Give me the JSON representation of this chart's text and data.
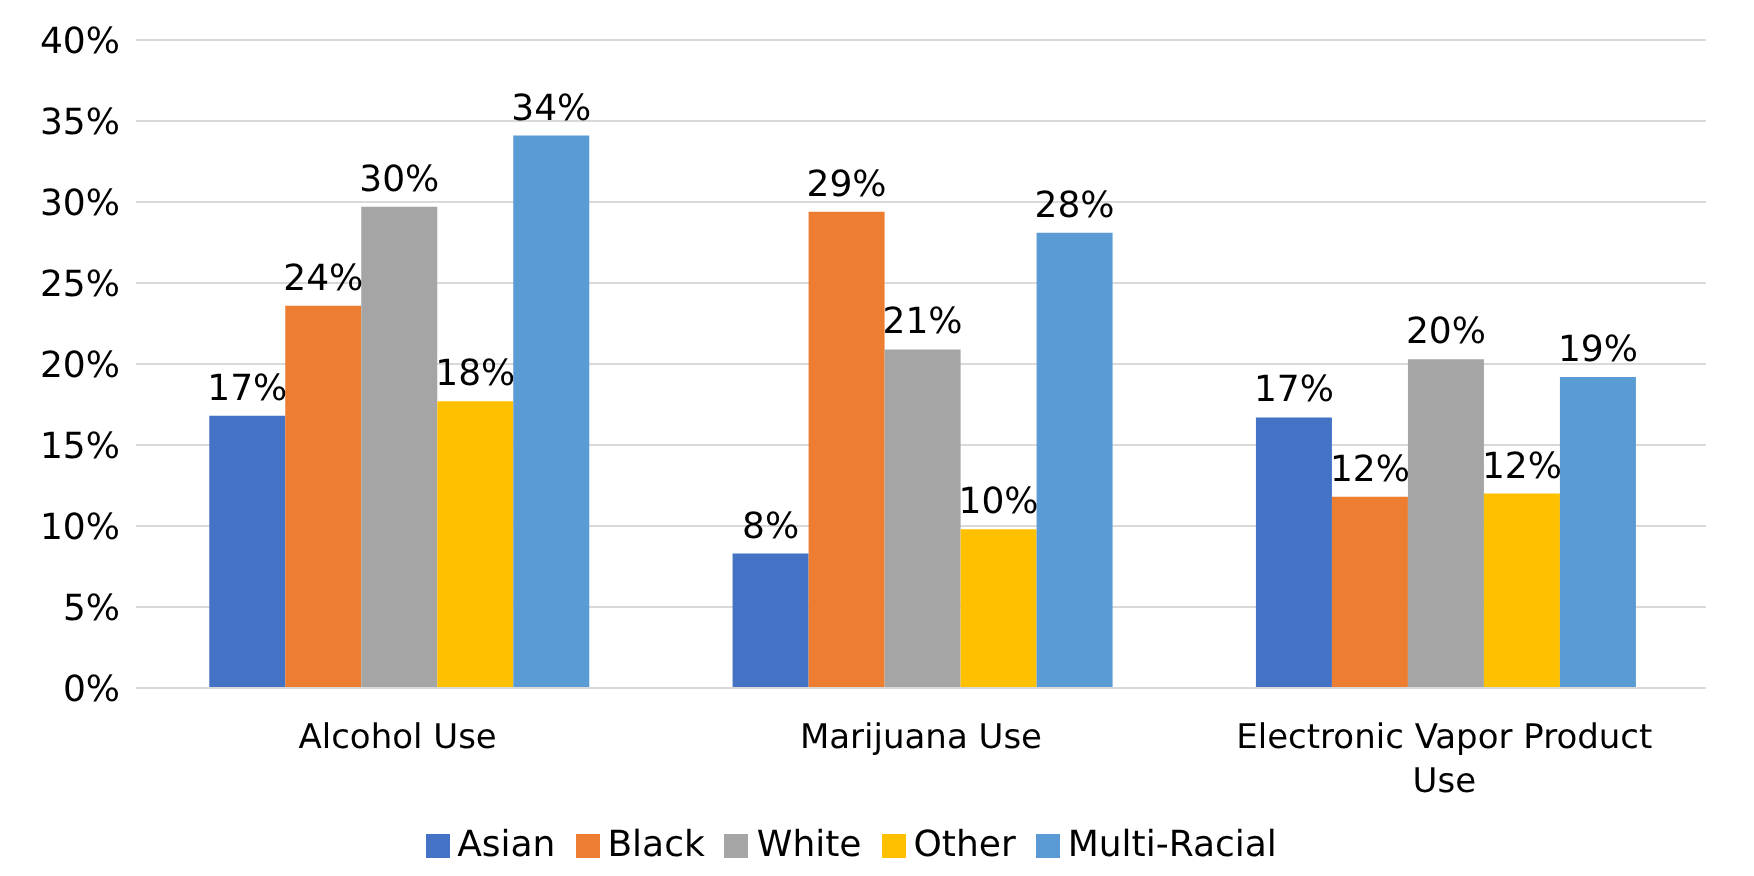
{
  "chart_data": {
    "type": "bar",
    "categories": [
      "Alcohol Use",
      "Marijuana Use",
      "Electronic Vapor Product Use"
    ],
    "series": [
      {
        "name": "Asian",
        "color": "#4472c4",
        "values": [
          16.8,
          8.3,
          16.7
        ],
        "value_labels": [
          "17%",
          "8%",
          "17%"
        ]
      },
      {
        "name": "Black",
        "color": "#ed7d31",
        "values": [
          23.6,
          29.4,
          11.8
        ],
        "value_labels": [
          "24%",
          "29%",
          "12%"
        ]
      },
      {
        "name": "White",
        "color": "#a5a5a5",
        "values": [
          29.7,
          20.9,
          20.3
        ],
        "value_labels": [
          "30%",
          "21%",
          "20%"
        ]
      },
      {
        "name": "Other",
        "color": "#ffc000",
        "values": [
          17.7,
          9.8,
          12.0
        ],
        "value_labels": [
          "18%",
          "10%",
          "12%"
        ]
      },
      {
        "name": "Multi-Racial",
        "color": "#5b9bd5",
        "values": [
          34.1,
          28.1,
          19.2
        ],
        "value_labels": [
          "34%",
          "28%",
          "19%"
        ]
      }
    ],
    "ylim": [
      0,
      40
    ],
    "yticks": [
      {
        "value": 0,
        "label": "0%"
      },
      {
        "value": 5,
        "label": "5%"
      },
      {
        "value": 10,
        "label": "10%"
      },
      {
        "value": 15,
        "label": "15%"
      },
      {
        "value": 20,
        "label": "20%"
      },
      {
        "value": 25,
        "label": "25%"
      },
      {
        "value": 30,
        "label": "30%"
      },
      {
        "value": 35,
        "label": "35%"
      },
      {
        "value": 40,
        "label": "40%"
      }
    ],
    "grid": "y",
    "legend": "bottom"
  }
}
